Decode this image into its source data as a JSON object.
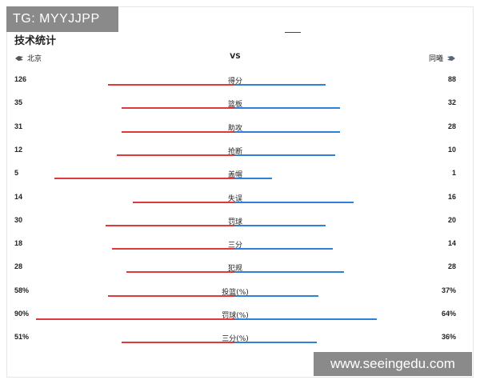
{
  "watermarks": {
    "top": "TG: MYYJJPP",
    "bottom": "www.seeingedu.com"
  },
  "section": {
    "title": "技术统计"
  },
  "header": {
    "team_left": "北京",
    "vs": "VS",
    "team_right": "同曦",
    "team_left_logo": "team-logo-icon",
    "team_right_logo": "team-logo-icon"
  },
  "colors": {
    "left_bar": "#e0393c",
    "right_bar": "#2e82d6"
  },
  "stats": [
    {
      "label": "得分",
      "left": "126",
      "right": "88",
      "left_fraction": 0.55,
      "right_fraction": 0.39
    },
    {
      "label": "篮板",
      "left": "35",
      "right": "32",
      "left_fraction": 0.49,
      "right_fraction": 0.45
    },
    {
      "label": "助攻",
      "left": "31",
      "right": "28",
      "left_fraction": 0.49,
      "right_fraction": 0.45
    },
    {
      "label": "抢断",
      "left": "12",
      "right": "10",
      "left_fraction": 0.51,
      "right_fraction": 0.43
    },
    {
      "label": "盖帽",
      "left": "5",
      "right": "1",
      "left_fraction": 0.78,
      "right_fraction": 0.16
    },
    {
      "label": "失误",
      "left": "14",
      "right": "16",
      "left_fraction": 0.44,
      "right_fraction": 0.51
    },
    {
      "label": "罚球",
      "left": "30",
      "right": "20",
      "left_fraction": 0.56,
      "right_fraction": 0.39
    },
    {
      "label": "三分",
      "left": "18",
      "right": "14",
      "left_fraction": 0.53,
      "right_fraction": 0.42
    },
    {
      "label": "犯规",
      "left": "28",
      "right": "28",
      "left_fraction": 0.47,
      "right_fraction": 0.47
    },
    {
      "label": "投篮(%)",
      "left": "58%",
      "right": "37%",
      "left_fraction": 0.55,
      "right_fraction": 0.36
    },
    {
      "label": "罚球(%)",
      "left": "90%",
      "right": "64%",
      "left_fraction": 0.86,
      "right_fraction": 0.61
    },
    {
      "label": "三分(%)",
      "left": "51%",
      "right": "36%",
      "left_fraction": 0.49,
      "right_fraction": 0.35
    }
  ]
}
